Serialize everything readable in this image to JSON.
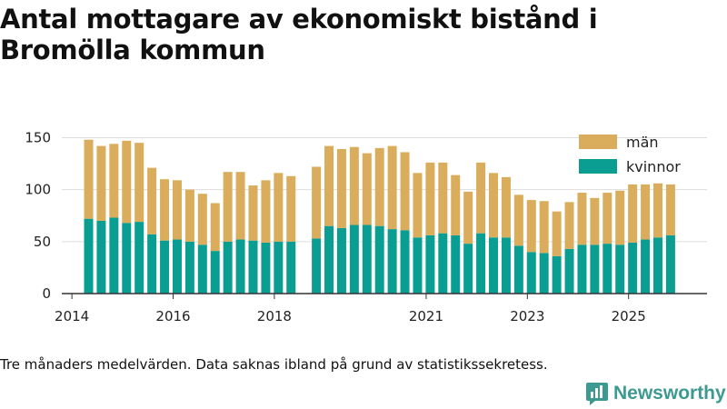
{
  "header": {
    "title": "Antal mottagare av ekonomiskt bistånd i Bromölla kommun"
  },
  "footer": {
    "note": "Tre månaders medelvärden. Data saknas ibland på grund av statistikssekretess.",
    "brand": "Newsworthy"
  },
  "colors": {
    "man": "#d9ad5c",
    "kvinnor": "#0a9e93",
    "grid": "#dddddd",
    "axis": "#333333"
  },
  "chart_data": {
    "type": "bar",
    "stacked": true,
    "title": "Antal mottagare av ekonomiskt bistånd i Bromölla kommun",
    "xlabel": "",
    "ylabel": "",
    "ylim": [
      0,
      160
    ],
    "yticks": [
      0,
      50,
      100,
      150
    ],
    "xlim": [
      2013.8,
      2026.55
    ],
    "xticks": [
      {
        "value": 2014,
        "label": "2014"
      },
      {
        "value": 2016,
        "label": "2016"
      },
      {
        "value": 2018,
        "label": "2018"
      },
      {
        "value": 2021,
        "label": "2021"
      },
      {
        "value": 2023,
        "label": "2023"
      },
      {
        "value": 2025,
        "label": "2025"
      }
    ],
    "grid": true,
    "legend_position": "top-right",
    "x": [
      2014.33,
      2014.58,
      2014.83,
      2015.08,
      2015.33,
      2015.58,
      2015.83,
      2016.08,
      2016.33,
      2016.58,
      2016.83,
      2017.08,
      2017.33,
      2017.58,
      2017.83,
      2018.08,
      2018.33,
      2018.83,
      2019.08,
      2019.33,
      2019.58,
      2019.83,
      2020.08,
      2020.33,
      2020.58,
      2020.83,
      2021.08,
      2021.33,
      2021.58,
      2021.83,
      2022.08,
      2022.33,
      2022.58,
      2022.83,
      2023.08,
      2023.33,
      2023.58,
      2023.83,
      2024.08,
      2024.33,
      2024.58,
      2024.83,
      2025.08,
      2025.33,
      2025.58,
      2025.83
    ],
    "series": [
      {
        "name": "kvinnor",
        "key": "kvinnor",
        "values": [
          72,
          70,
          73,
          68,
          69,
          57,
          51,
          52,
          50,
          47,
          41,
          50,
          52,
          51,
          49,
          50,
          50,
          53,
          65,
          63,
          66,
          66,
          65,
          62,
          61,
          54,
          56,
          58,
          56,
          48,
          58,
          54,
          54,
          46,
          40,
          39,
          36,
          43,
          47,
          47,
          48,
          47,
          49,
          52,
          54,
          56
        ]
      },
      {
        "name": "män",
        "key": "man",
        "values": [
          76,
          72,
          71,
          79,
          76,
          64,
          59,
          57,
          50,
          49,
          46,
          67,
          65,
          53,
          60,
          66,
          63,
          69,
          77,
          76,
          75,
          69,
          75,
          80,
          75,
          62,
          70,
          68,
          58,
          50,
          68,
          62,
          58,
          49,
          50,
          50,
          43,
          45,
          50,
          45,
          49,
          52,
          56,
          53,
          52,
          49
        ]
      }
    ]
  }
}
